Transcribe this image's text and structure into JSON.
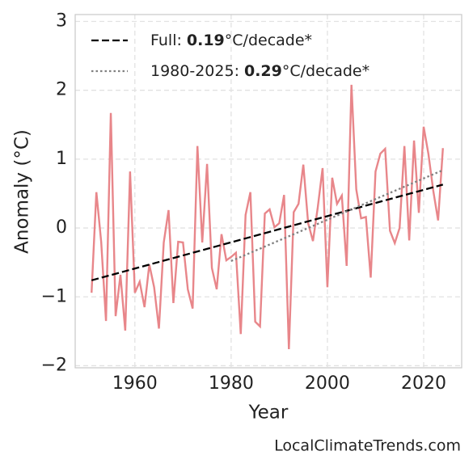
{
  "chart_data": {
    "type": "line",
    "x_label": "Year",
    "y_label": "Anomaly (°C)",
    "xlim": [
      1947.6,
      2027.9
    ],
    "ylim": [
      -2.03,
      3.1
    ],
    "xticks": [
      1960,
      1980,
      2000,
      2020
    ],
    "yticks": [
      {
        "value": -2,
        "label": "−2"
      },
      {
        "value": -1,
        "label": "−1"
      },
      0,
      1,
      2,
      3
    ],
    "grid": true,
    "legend": "upper left",
    "series": [
      {
        "role": "data",
        "color": "#e8868a",
        "style": "solid",
        "x": [
          1951,
          1952,
          1953,
          1954,
          1955,
          1956,
          1957,
          1958,
          1959,
          1960,
          1961,
          1962,
          1963,
          1964,
          1965,
          1966,
          1967,
          1968,
          1969,
          1970,
          1971,
          1972,
          1973,
          1974,
          1975,
          1976,
          1977,
          1978,
          1979,
          1980,
          1981,
          1982,
          1983,
          1984,
          1985,
          1986,
          1987,
          1988,
          1989,
          1990,
          1991,
          1992,
          1993,
          1994,
          1995,
          1996,
          1997,
          1998,
          1999,
          2000,
          2001,
          2002,
          2003,
          2004,
          2005,
          2006,
          2007,
          2008,
          2009,
          2010,
          2011,
          2012,
          2013,
          2014,
          2015,
          2016,
          2017,
          2018,
          2019,
          2020,
          2021,
          2022,
          2023,
          2024
        ],
        "values": [
          -0.94,
          0.52,
          -0.2,
          -1.35,
          1.67,
          -1.28,
          -0.68,
          -1.49,
          0.82,
          -0.94,
          -0.78,
          -1.15,
          -0.53,
          -0.86,
          -1.46,
          -0.21,
          0.26,
          -1.09,
          -0.2,
          -0.21,
          -0.89,
          -1.17,
          1.19,
          -0.21,
          0.93,
          -0.58,
          -0.89,
          -0.09,
          -0.47,
          -0.42,
          -0.36,
          -1.54,
          0.19,
          0.52,
          -1.36,
          -1.43,
          0.21,
          0.27,
          0.01,
          0.07,
          0.48,
          -1.76,
          0.23,
          0.35,
          0.92,
          0.07,
          -0.19,
          0.3,
          0.87,
          -0.86,
          0.73,
          0.35,
          0.47,
          -0.55,
          2.08,
          0.56,
          0.14,
          0.16,
          -0.72,
          0.82,
          1.08,
          1.15,
          -0.04,
          -0.22,
          0.0,
          1.19,
          -0.18,
          1.27,
          0.22,
          1.47,
          1.07,
          0.54,
          0.11,
          1.16
        ]
      },
      {
        "role": "trend",
        "name": [
          "Full:",
          "0.19",
          "°C/decade*"
        ],
        "color": "#000000",
        "style": "dashed",
        "x": [
          1951,
          2024
        ],
        "values": [
          -0.76,
          0.63
        ]
      },
      {
        "role": "trend",
        "name": [
          "1980-2025:",
          "0.29",
          "°C/decade*"
        ],
        "color": "#808080",
        "style": "dotted",
        "x": [
          1980,
          2024
        ],
        "values": [
          -0.48,
          0.84
        ]
      }
    ],
    "footer": "LocalClimateTrends.com"
  }
}
